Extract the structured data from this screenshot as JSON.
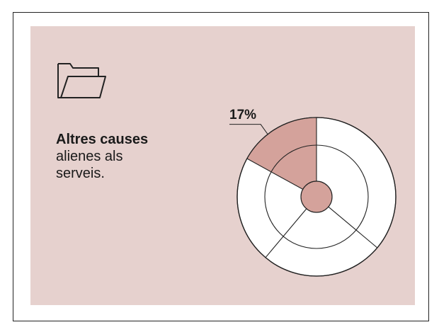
{
  "caption": {
    "bold": "Altres causes",
    "rest": "alienes als serveis."
  },
  "icon": "folder-icon",
  "colors": {
    "panel": "#e6d1ce",
    "highlight": "#d4a29b",
    "ring": "#ffffff",
    "stroke": "#222222"
  },
  "chart_data": {
    "type": "pie",
    "style": "radial rings",
    "slices": [
      {
        "label": "17%",
        "value": 17,
        "highlighted": true
      }
    ],
    "unit": "%",
    "annotations": [
      "17%"
    ]
  }
}
